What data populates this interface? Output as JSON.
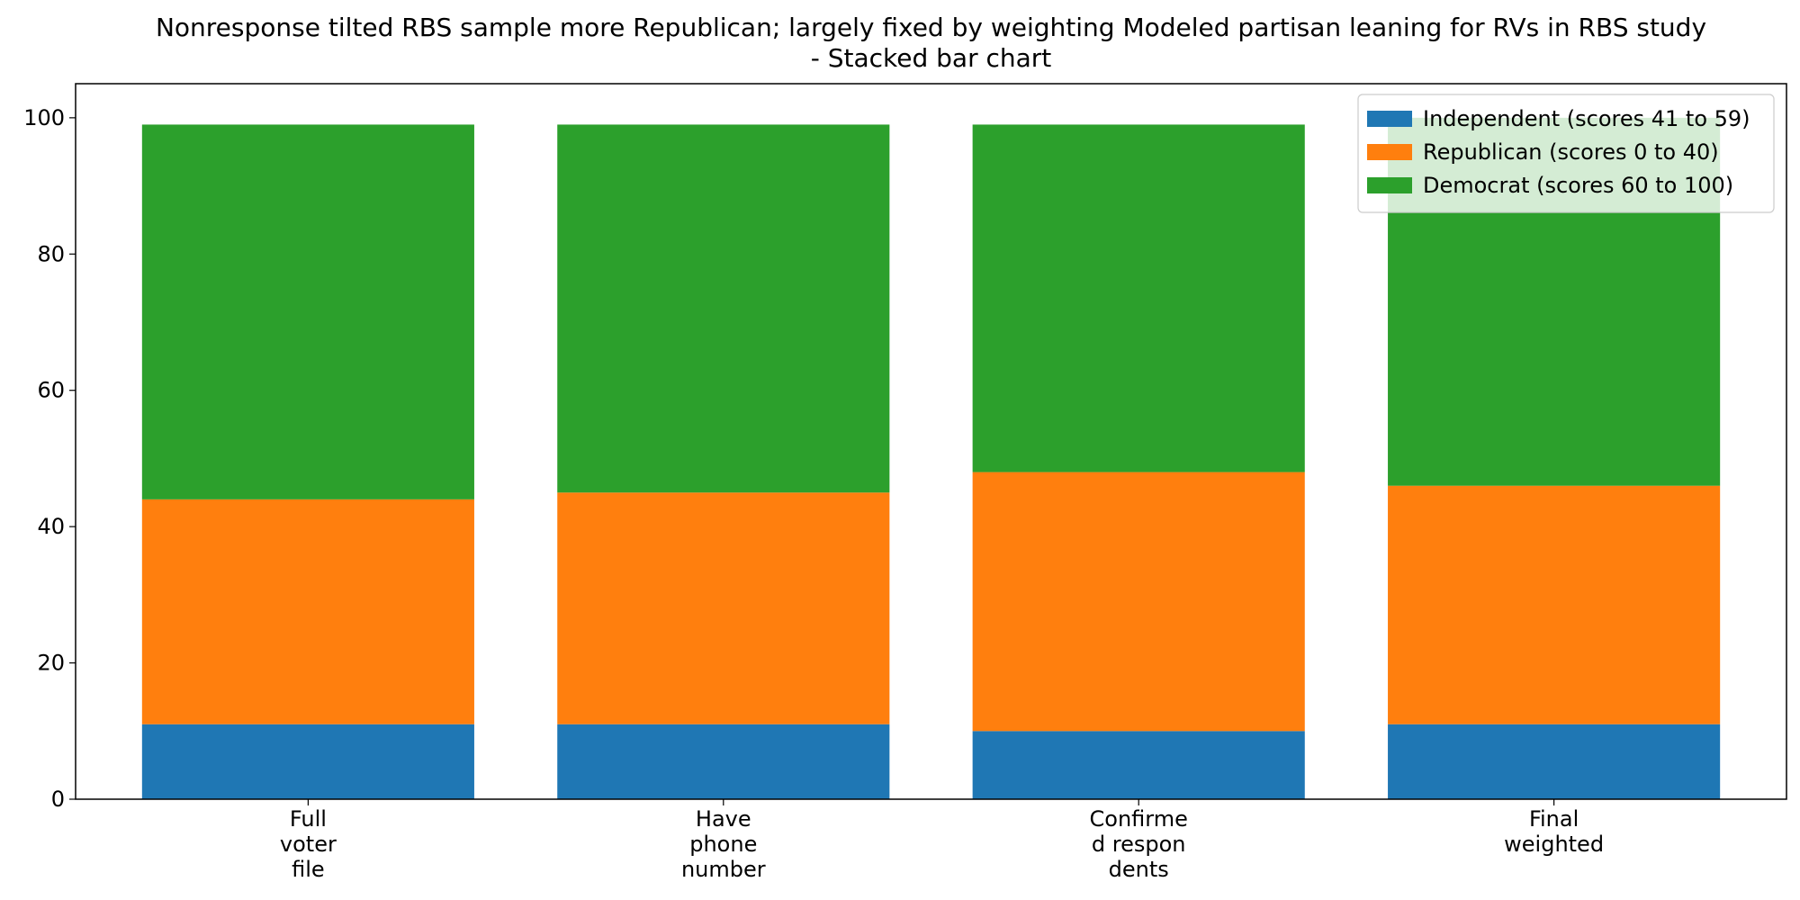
{
  "chart_data": {
    "type": "bar",
    "stacked": true,
    "title": "Nonresponse tilted RBS sample more Republican; largely fixed by weighting Modeled partisan leaning for RVs in RBS study - Stacked bar chart",
    "title_lines": [
      "Nonresponse tilted RBS sample more Republican; largely fixed by weighting Modeled partisan leaning for RVs in RBS study",
      "- Stacked bar chart"
    ],
    "xlabel": "",
    "ylabel": "",
    "categories": [
      "Full voter file",
      "Have phone number",
      "Confirmed respondents",
      "Final weighted"
    ],
    "category_tick_lines": [
      [
        "Full",
        "voter",
        "file"
      ],
      [
        "Have",
        "phone",
        "number"
      ],
      [
        "Confirme",
        "d respon",
        "dents"
      ],
      [
        "Final",
        "weighted"
      ]
    ],
    "series": [
      {
        "name": "Independent (scores 41 to 59)",
        "color": "#1f77b4",
        "values": [
          11,
          11,
          10,
          11
        ]
      },
      {
        "name": "Republican (scores 0 to 40)",
        "color": "#ff7f0e",
        "values": [
          33,
          34,
          38,
          35
        ]
      },
      {
        "name": "Democrat (scores 60 to 100)",
        "color": "#2ca02c",
        "values": [
          55,
          54,
          51,
          54
        ]
      }
    ],
    "ylim": [
      0,
      105
    ],
    "yticks": [
      0,
      20,
      40,
      60,
      80,
      100
    ],
    "grid": false,
    "legend": "top-right"
  }
}
